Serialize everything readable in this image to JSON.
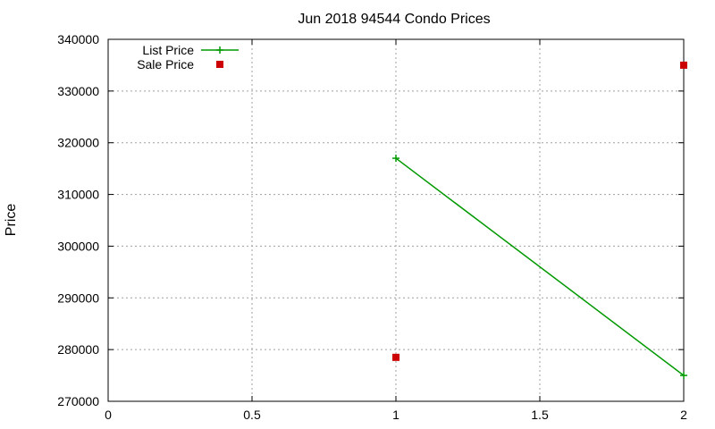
{
  "chart_data": {
    "type": "line",
    "title": "Jun 2018 94544 Condo Prices",
    "xlabel": "",
    "ylabel": "Price",
    "xlim": [
      0,
      2
    ],
    "ylim": [
      270000,
      340000
    ],
    "x_ticks": [
      0,
      0.5,
      1,
      1.5,
      2
    ],
    "x_tick_labels": [
      "0",
      "0.5",
      "1",
      "1.5",
      "2"
    ],
    "y_ticks": [
      270000,
      280000,
      290000,
      300000,
      310000,
      320000,
      330000,
      340000
    ],
    "y_tick_labels": [
      "270000",
      "280000",
      "290000",
      "300000",
      "310000",
      "320000",
      "330000",
      "340000"
    ],
    "grid": true,
    "legend_position": "top-left",
    "series": [
      {
        "name": "List Price",
        "style": "line-with-plus-markers",
        "color": "#009900",
        "points": [
          {
            "x": 1,
            "y": 317000
          },
          {
            "x": 2,
            "y": 275000
          }
        ]
      },
      {
        "name": "Sale Price",
        "style": "square-markers",
        "color": "#cc0000",
        "points": [
          {
            "x": 1,
            "y": 278500
          },
          {
            "x": 2,
            "y": 335000
          }
        ]
      }
    ]
  }
}
